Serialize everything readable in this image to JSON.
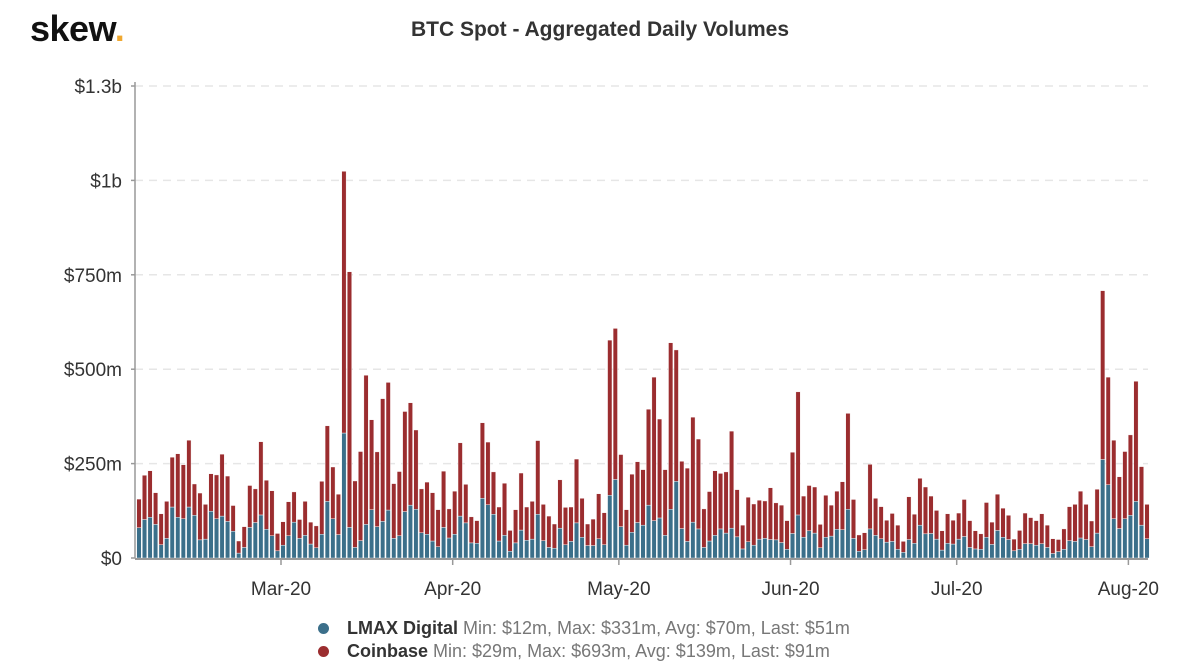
{
  "logo": {
    "text": "skew",
    "dot": ".",
    "dot_color": "#f0a830"
  },
  "chart_data": {
    "type": "bar",
    "stacked": true,
    "title": "BTC Spot - Aggregated Daily Volumes",
    "xlabel": "",
    "ylabel": "",
    "ylim": [
      0,
      1250
    ],
    "y_unit": "$m",
    "grid": "horizontal dashed",
    "legend_position": "bottom",
    "y_ticks": [
      {
        "value": 0,
        "label": "$0"
      },
      {
        "value": 250,
        "label": "$250m"
      },
      {
        "value": 500,
        "label": "$500m"
      },
      {
        "value": 750,
        "label": "$750m"
      },
      {
        "value": 1000,
        "label": "$1b"
      },
      {
        "value": 1250,
        "label": "$1.3b"
      }
    ],
    "x_ticks": [
      {
        "date": "2020-03-01",
        "label": "Mar-20"
      },
      {
        "date": "2020-04-01",
        "label": "Apr-20"
      },
      {
        "date": "2020-05-01",
        "label": "May-20"
      },
      {
        "date": "2020-06-01",
        "label": "Jun-20"
      },
      {
        "date": "2020-07-01",
        "label": "Jul-20"
      },
      {
        "date": "2020-08-01",
        "label": "Aug-20"
      }
    ],
    "x": [
      "2020-02-04",
      "2020-02-05",
      "2020-02-06",
      "2020-02-07",
      "2020-02-08",
      "2020-02-09",
      "2020-02-10",
      "2020-02-11",
      "2020-02-12",
      "2020-02-13",
      "2020-02-14",
      "2020-02-15",
      "2020-02-16",
      "2020-02-17",
      "2020-02-18",
      "2020-02-19",
      "2020-02-20",
      "2020-02-21",
      "2020-02-22",
      "2020-02-23",
      "2020-02-24",
      "2020-02-25",
      "2020-02-26",
      "2020-02-27",
      "2020-02-28",
      "2020-02-29",
      "2020-03-01",
      "2020-03-02",
      "2020-03-03",
      "2020-03-04",
      "2020-03-05",
      "2020-03-06",
      "2020-03-07",
      "2020-03-08",
      "2020-03-09",
      "2020-03-10",
      "2020-03-11",
      "2020-03-12",
      "2020-03-13",
      "2020-03-14",
      "2020-03-15",
      "2020-03-16",
      "2020-03-17",
      "2020-03-18",
      "2020-03-19",
      "2020-03-20",
      "2020-03-21",
      "2020-03-22",
      "2020-03-23",
      "2020-03-24",
      "2020-03-25",
      "2020-03-26",
      "2020-03-27",
      "2020-03-28",
      "2020-03-29",
      "2020-03-30",
      "2020-03-31",
      "2020-04-01",
      "2020-04-02",
      "2020-04-03",
      "2020-04-04",
      "2020-04-05",
      "2020-04-06",
      "2020-04-07",
      "2020-04-08",
      "2020-04-09",
      "2020-04-10",
      "2020-04-11",
      "2020-04-12",
      "2020-04-13",
      "2020-04-14",
      "2020-04-15",
      "2020-04-16",
      "2020-04-17",
      "2020-04-18",
      "2020-04-19",
      "2020-04-20",
      "2020-04-21",
      "2020-04-22",
      "2020-04-23",
      "2020-04-24",
      "2020-04-25",
      "2020-04-26",
      "2020-04-27",
      "2020-04-28",
      "2020-04-29",
      "2020-04-30",
      "2020-05-01",
      "2020-05-02",
      "2020-05-03",
      "2020-05-04",
      "2020-05-05",
      "2020-05-06",
      "2020-05-07",
      "2020-05-08",
      "2020-05-09",
      "2020-05-10",
      "2020-05-11",
      "2020-05-12",
      "2020-05-13",
      "2020-05-14",
      "2020-05-15",
      "2020-05-16",
      "2020-05-17",
      "2020-05-18",
      "2020-05-19",
      "2020-05-20",
      "2020-05-21",
      "2020-05-22",
      "2020-05-23",
      "2020-05-24",
      "2020-05-25",
      "2020-05-26",
      "2020-05-27",
      "2020-05-28",
      "2020-05-29",
      "2020-05-30",
      "2020-05-31",
      "2020-06-01",
      "2020-06-02",
      "2020-06-03",
      "2020-06-04",
      "2020-06-05",
      "2020-06-06",
      "2020-06-07",
      "2020-06-08",
      "2020-06-09",
      "2020-06-10",
      "2020-06-11",
      "2020-06-12",
      "2020-06-13",
      "2020-06-14",
      "2020-06-15",
      "2020-06-16",
      "2020-06-17",
      "2020-06-18",
      "2020-06-19",
      "2020-06-20",
      "2020-06-21",
      "2020-06-22",
      "2020-06-23",
      "2020-06-24",
      "2020-06-25",
      "2020-06-26",
      "2020-06-27",
      "2020-06-28",
      "2020-06-29",
      "2020-06-30",
      "2020-07-01",
      "2020-07-02",
      "2020-07-03",
      "2020-07-04",
      "2020-07-05",
      "2020-07-06",
      "2020-07-07",
      "2020-07-08",
      "2020-07-09",
      "2020-07-10",
      "2020-07-11",
      "2020-07-12",
      "2020-07-13",
      "2020-07-14",
      "2020-07-15",
      "2020-07-16",
      "2020-07-17",
      "2020-07-18",
      "2020-07-19",
      "2020-07-20",
      "2020-07-21",
      "2020-07-22",
      "2020-07-23",
      "2020-07-24",
      "2020-07-25",
      "2020-07-26",
      "2020-07-27",
      "2020-07-28",
      "2020-07-29",
      "2020-07-30",
      "2020-07-31",
      "2020-08-01",
      "2020-08-02",
      "2020-08-03",
      "2020-08-04"
    ],
    "series": [
      {
        "name": "LMAX Digital",
        "color": "#3b6f8a",
        "stats": "Min: $12m, Max: $331m, Avg: $70m, Last: $51m",
        "values": [
          80,
          102,
          108,
          89,
          35,
          52,
          135,
          108,
          104,
          135,
          113,
          48,
          50,
          124,
          104,
          111,
          97,
          71,
          13,
          28,
          81,
          94,
          114,
          76,
          59,
          19,
          34,
          59,
          95,
          52,
          60,
          37,
          27,
          63,
          150,
          104,
          62,
          331,
          81,
          28,
          46,
          89,
          128,
          83,
          97,
          127,
          52,
          59,
          123,
          140,
          129,
          67,
          63,
          45,
          30,
          81,
          53,
          63,
          111,
          93,
          40,
          39,
          158,
          141,
          116,
          45,
          60,
          18,
          40,
          74,
          47,
          50,
          116,
          46,
          28,
          26,
          79,
          35,
          44,
          93,
          55,
          33,
          33,
          51,
          35,
          166,
          208,
          83,
          34,
          68,
          94,
          87,
          140,
          99,
          106,
          60,
          129,
          203,
          78,
          44,
          95,
          77,
          28,
          45,
          60,
          77,
          66,
          79,
          56,
          24,
          43,
          34,
          50,
          52,
          49,
          48,
          41,
          23,
          65,
          114,
          55,
          72,
          66,
          27,
          55,
          58,
          76,
          75,
          129,
          52,
          18,
          22,
          77,
          60,
          51,
          42,
          44,
          23,
          15,
          49,
          39,
          87,
          64,
          65,
          50,
          21,
          39,
          37,
          50,
          57,
          28,
          24,
          23,
          55,
          36,
          73,
          55,
          49,
          19,
          23,
          38,
          38,
          34,
          38,
          28,
          12,
          17,
          23,
          46,
          44,
          53,
          49,
          30,
          66,
          261,
          194,
          104,
          78,
          104,
          113,
          150,
          87,
          51
        ]
      },
      {
        "name": "Coinbase",
        "color": "#9b2d2f",
        "stats": "Min: $29m, Max: $693m, Avg: $139m, Last: $91m",
        "values": [
          76,
          117,
          123,
          84,
          82,
          98,
          132,
          168,
          143,
          177,
          83,
          124,
          92,
          99,
          116,
          164,
          120,
          68,
          32,
          55,
          111,
          89,
          194,
          130,
          119,
          46,
          62,
          90,
          80,
          50,
          90,
          58,
          58,
          140,
          200,
          137,
          107,
          693,
          677,
          176,
          236,
          395,
          238,
          198,
          325,
          338,
          145,
          170,
          265,
          271,
          210,
          116,
          138,
          128,
          98,
          149,
          77,
          114,
          194,
          102,
          69,
          60,
          200,
          166,
          112,
          90,
          138,
          55,
          88,
          151,
          88,
          100,
          195,
          96,
          83,
          64,
          128,
          99,
          91,
          169,
          103,
          57,
          70,
          119,
          85,
          411,
          400,
          191,
          94,
          154,
          161,
          147,
          254,
          380,
          262,
          174,
          441,
          348,
          178,
          194,
          278,
          238,
          102,
          131,
          171,
          147,
          162,
          257,
          125,
          63,
          118,
          109,
          103,
          99,
          137,
          98,
          99,
          76,
          215,
          326,
          109,
          120,
          122,
          62,
          111,
          82,
          101,
          127,
          254,
          103,
          43,
          45,
          171,
          98,
          85,
          58,
          74,
          64,
          29,
          113,
          77,
          124,
          124,
          99,
          76,
          51,
          78,
          63,
          69,
          98,
          71,
          48,
          41,
          92,
          59,
          96,
          77,
          64,
          31,
          50,
          81,
          69,
          65,
          79,
          59,
          39,
          32,
          54,
          90,
          98,
          124,
          93,
          68,
          116,
          447,
          285,
          208,
          137,
          178,
          213,
          318,
          155,
          91
        ]
      }
    ]
  }
}
